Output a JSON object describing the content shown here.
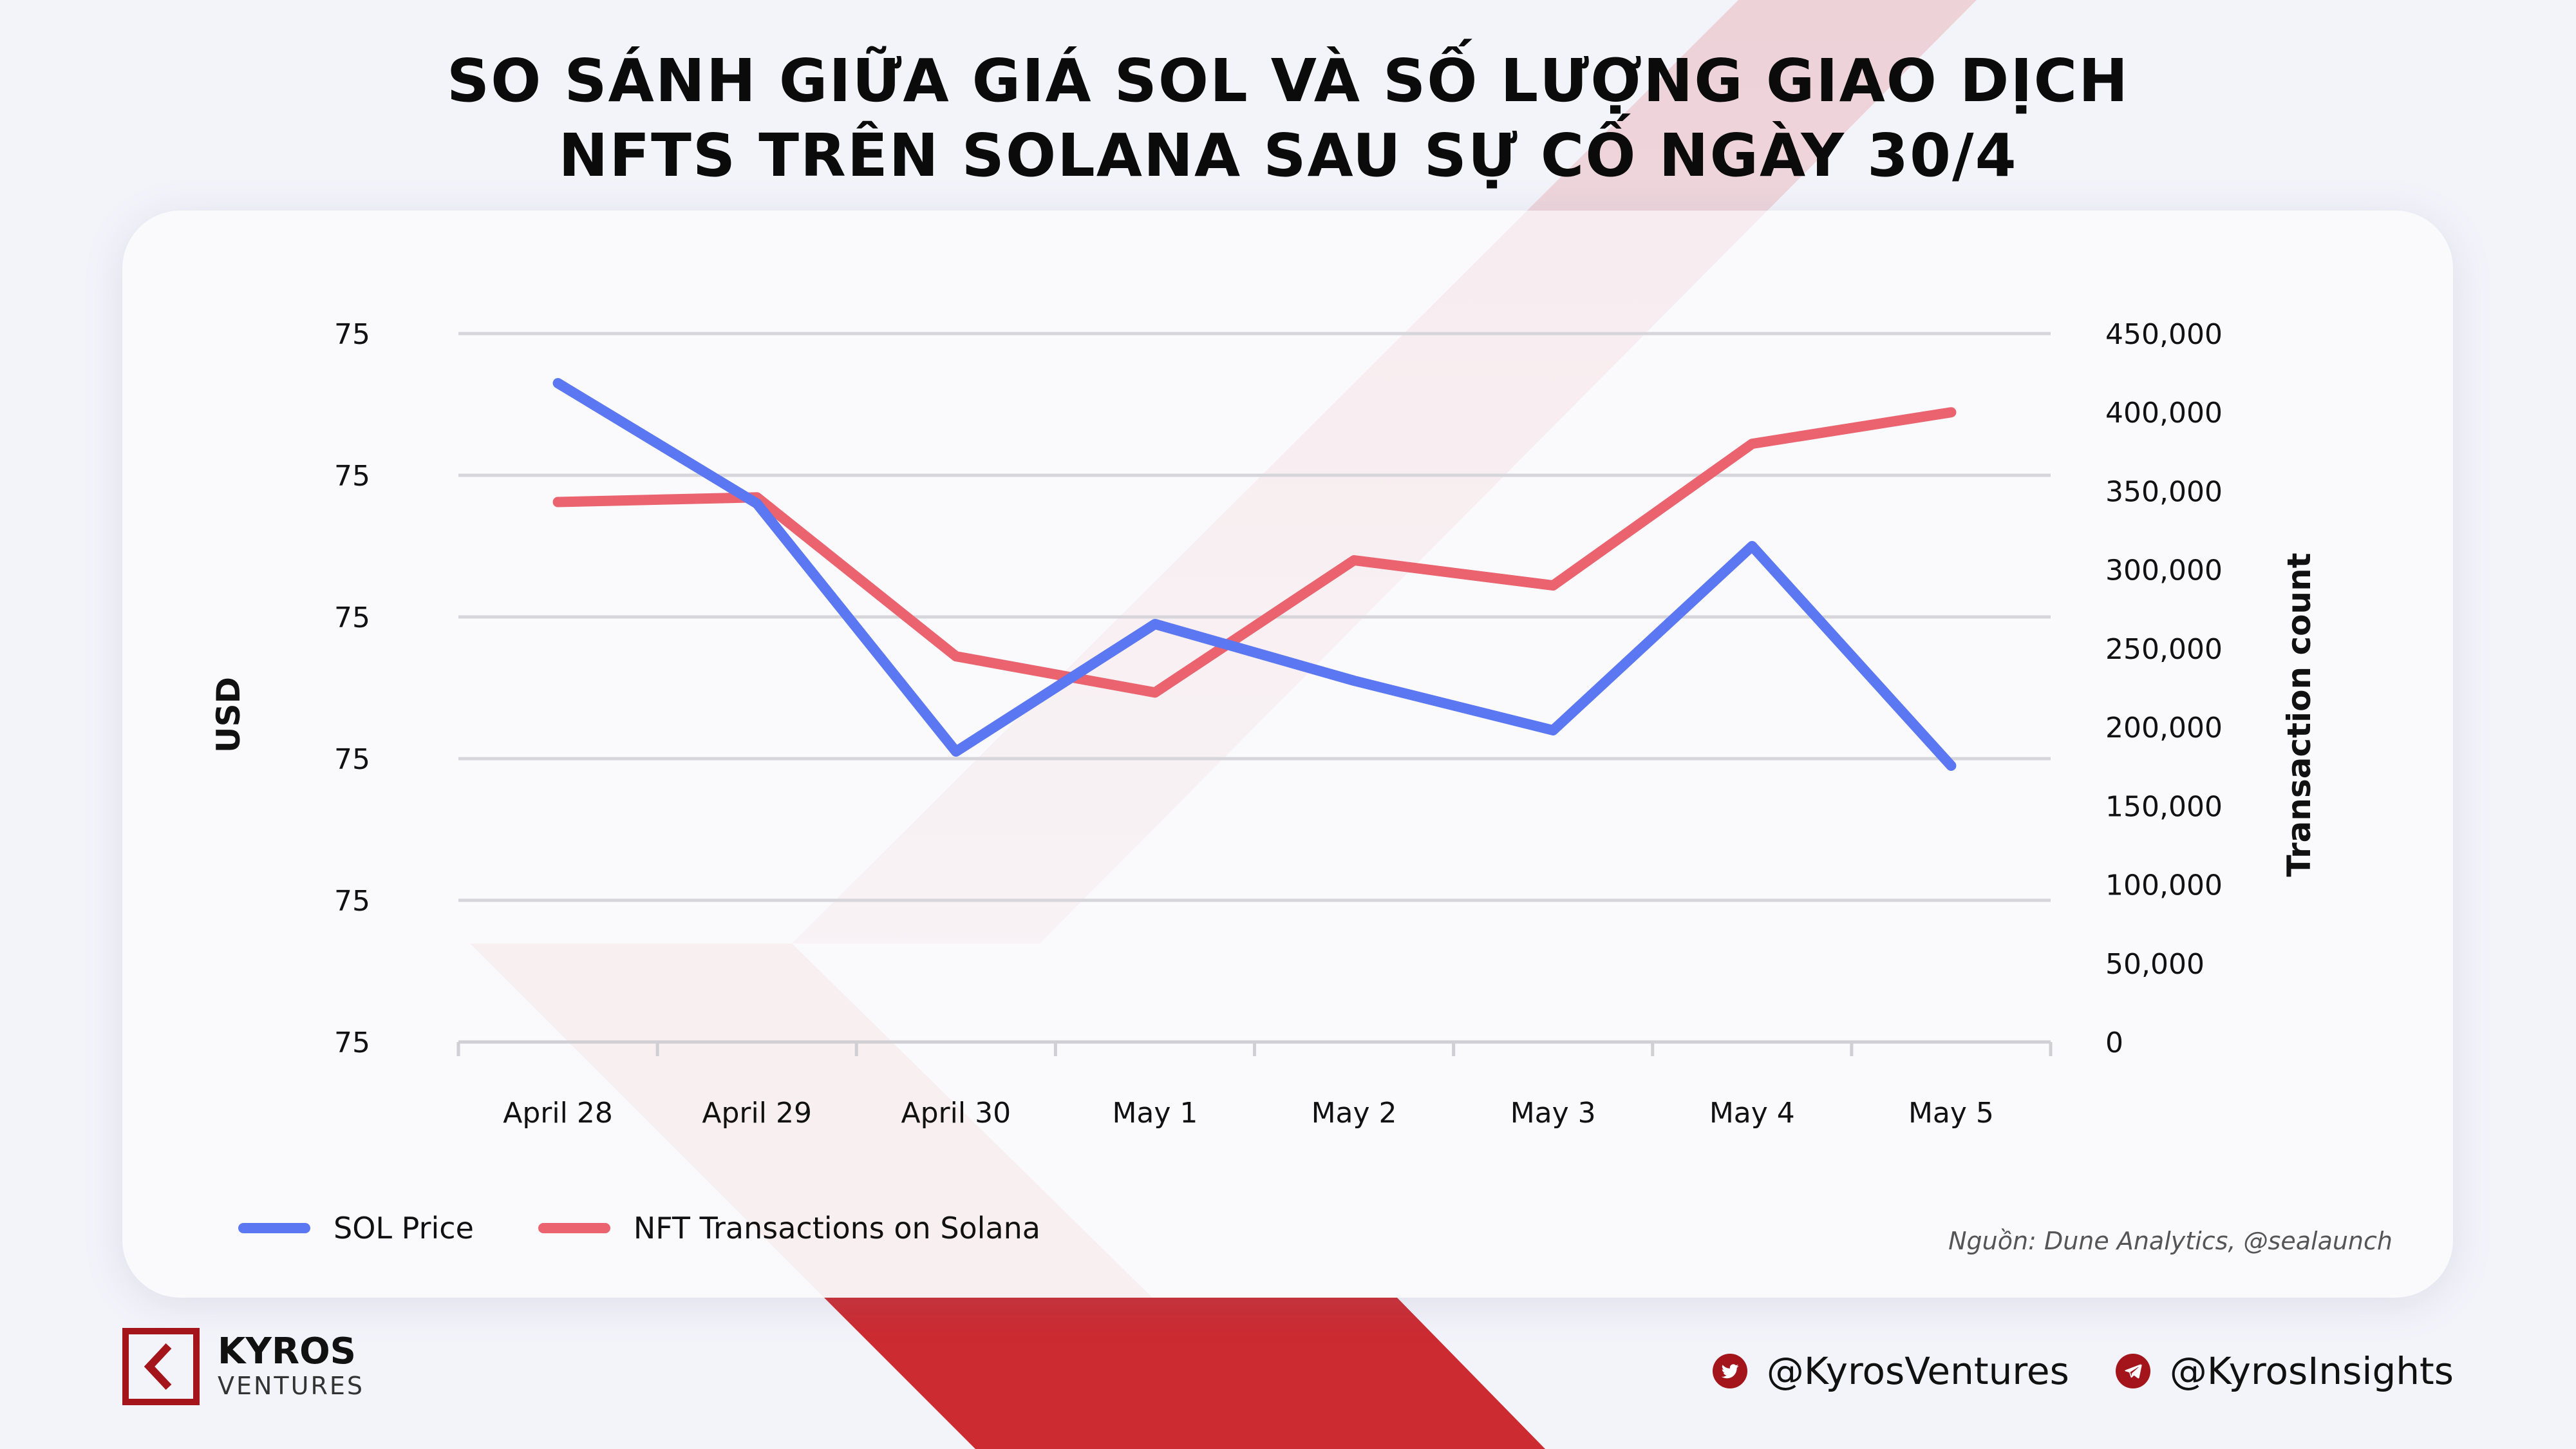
{
  "title": {
    "line1": "SO SÁNH GIỮA GIÁ SOL VÀ SỐ LƯỢNG GIAO DỊCH",
    "line2": "NFTS TRÊN SOLANA SAU SỰ CỐ NGÀY 30/4"
  },
  "colors": {
    "sol_price": "#5b77f2",
    "nft_transactions": "#ea636e",
    "accent_red": "#c8242c",
    "brand_dark_red": "#a3151b"
  },
  "chart_data": {
    "type": "line",
    "categories": [
      "April 28",
      "April 29",
      "April 30",
      "May 1",
      "May 2",
      "May 3",
      "May 4",
      "May 5"
    ],
    "left_axis": {
      "label": "USD",
      "tick_labels": [
        "75",
        "75",
        "75",
        "75",
        "75",
        "75"
      ]
    },
    "right_axis": {
      "label": "Transaction count",
      "ylim": [
        0,
        450000
      ],
      "tick_labels": [
        "450,000",
        "400,000",
        "350,000",
        "300,000",
        "250,000",
        "200,000",
        "150,000",
        "100,000",
        "50,000",
        "0"
      ],
      "tick_values": [
        450000,
        400000,
        350000,
        300000,
        250000,
        200000,
        150000,
        100000,
        50000,
        0
      ]
    },
    "series": [
      {
        "name": "SOL Price",
        "axis": "left",
        "values_relative": [
          0.93,
          0.76,
          0.41,
          0.59,
          0.51,
          0.44,
          0.7,
          0.39
        ],
        "note_scale": "fraction of left axis height (left tick labels all read 75)"
      },
      {
        "name": "NFT Transactions on Solana",
        "axis": "right",
        "values": [
          343000,
          346000,
          245000,
          222000,
          306000,
          290000,
          380000,
          400000
        ]
      }
    ],
    "grid": true,
    "legend_position": "bottom-left"
  },
  "source": "Nguồn: Dune Analytics, @sealaunch",
  "brand": {
    "name": "KYROS",
    "sub": "VENTURES"
  },
  "socials": [
    {
      "icon": "twitter-icon",
      "handle": "@KyrosVentures"
    },
    {
      "icon": "telegram-icon",
      "handle": "@KyrosInsights"
    }
  ]
}
